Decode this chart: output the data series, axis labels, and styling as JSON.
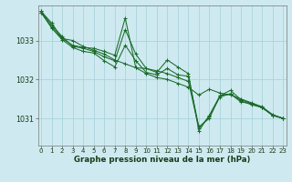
{
  "title": "Graphe pression niveau de la mer (hPa)",
  "background_color": "#ceeaf0",
  "grid_color": "#aad4dc",
  "line_color": "#1a6b2a",
  "x_ticks": [
    0,
    1,
    2,
    3,
    4,
    5,
    6,
    7,
    8,
    9,
    10,
    11,
    12,
    13,
    14,
    15,
    16,
    17,
    18,
    19,
    20,
    21,
    22,
    23
  ],
  "y_ticks": [
    1031,
    1032,
    1033
  ],
  "ylim": [
    1030.3,
    1033.9
  ],
  "xlim": [
    -0.3,
    23.3
  ],
  "series": [
    [
      1033.75,
      1033.45,
      1033.05,
      1033.0,
      1032.85,
      1032.75,
      1032.65,
      1032.5,
      1032.4,
      1032.3,
      1032.15,
      1032.05,
      1032.0,
      1031.9,
      1031.8,
      1031.6,
      1031.75,
      1031.65,
      1031.6,
      1031.5,
      1031.4,
      1031.3,
      1031.1,
      1031.0
    ],
    [
      1033.75,
      1033.4,
      1033.1,
      1032.85,
      1032.8,
      1032.72,
      1032.58,
      1032.48,
      1033.28,
      1032.65,
      1032.28,
      1032.22,
      1032.15,
      1032.05,
      1031.95,
      1030.75,
      1031.05,
      1031.55,
      1031.63,
      1031.45,
      1031.35,
      1031.28,
      1031.08,
      1031.0
    ],
    [
      1033.72,
      1033.35,
      1033.05,
      1032.88,
      1032.82,
      1032.8,
      1032.72,
      1032.62,
      1033.58,
      1032.3,
      1032.28,
      1032.18,
      1032.5,
      1032.32,
      1032.15,
      1030.68,
      1031.08,
      1031.58,
      1031.63,
      1031.42,
      1031.38,
      1031.28,
      1031.08,
      1031.0
    ],
    [
      1033.72,
      1033.32,
      1033.02,
      1032.82,
      1032.72,
      1032.68,
      1032.48,
      1032.32,
      1032.88,
      1032.48,
      1032.18,
      1032.12,
      1032.28,
      1032.12,
      1032.08,
      1030.78,
      1031.0,
      1031.58,
      1031.72,
      1031.48,
      1031.38,
      1031.28,
      1031.08,
      1031.0
    ]
  ]
}
